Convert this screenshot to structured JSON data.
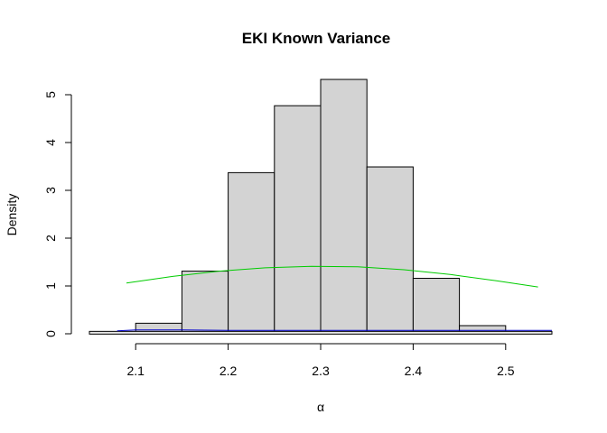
{
  "chart_data": {
    "type": "bar",
    "title": "EKI Known Variance",
    "xlabel": "α",
    "ylabel": "Density",
    "xlim": [
      2.05,
      2.55
    ],
    "ylim": [
      0,
      5.3
    ],
    "x_ticks": [
      2.1,
      2.2,
      2.3,
      2.4,
      2.5
    ],
    "y_ticks": [
      0,
      1,
      2,
      3,
      4,
      5
    ],
    "bins": [
      {
        "start": 2.05,
        "end": 2.1,
        "density": 0.0
      },
      {
        "start": 2.1,
        "end": 2.15,
        "density": 0.22
      },
      {
        "start": 2.15,
        "end": 2.2,
        "density": 1.31
      },
      {
        "start": 2.2,
        "end": 2.25,
        "density": 3.37
      },
      {
        "start": 2.25,
        "end": 2.3,
        "density": 4.77
      },
      {
        "start": 2.3,
        "end": 2.35,
        "density": 5.32
      },
      {
        "start": 2.35,
        "end": 2.4,
        "density": 3.49
      },
      {
        "start": 2.4,
        "end": 2.45,
        "density": 1.16
      },
      {
        "start": 2.45,
        "end": 2.5,
        "density": 0.17
      },
      {
        "start": 2.5,
        "end": 2.55,
        "density": 0.0
      }
    ],
    "density_box": {
      "start": 2.05,
      "end": 2.55,
      "density": 0.05
    },
    "green_curve": {
      "color": "#00cc00",
      "x": [
        2.09,
        2.14,
        2.19,
        2.24,
        2.29,
        2.34,
        2.39,
        2.44,
        2.49,
        2.535
      ],
      "y": [
        1.06,
        1.2,
        1.31,
        1.38,
        1.41,
        1.4,
        1.34,
        1.24,
        1.11,
        0.98
      ]
    },
    "blue_curve": {
      "color": "#0000cc",
      "x": [
        2.08,
        2.1,
        2.15,
        2.2,
        2.3,
        2.4,
        2.5,
        2.55
      ],
      "y": [
        0.06,
        0.08,
        0.08,
        0.07,
        0.07,
        0.07,
        0.07,
        0.07
      ]
    },
    "bar_fill": "#d3d3d3",
    "grid": false
  }
}
